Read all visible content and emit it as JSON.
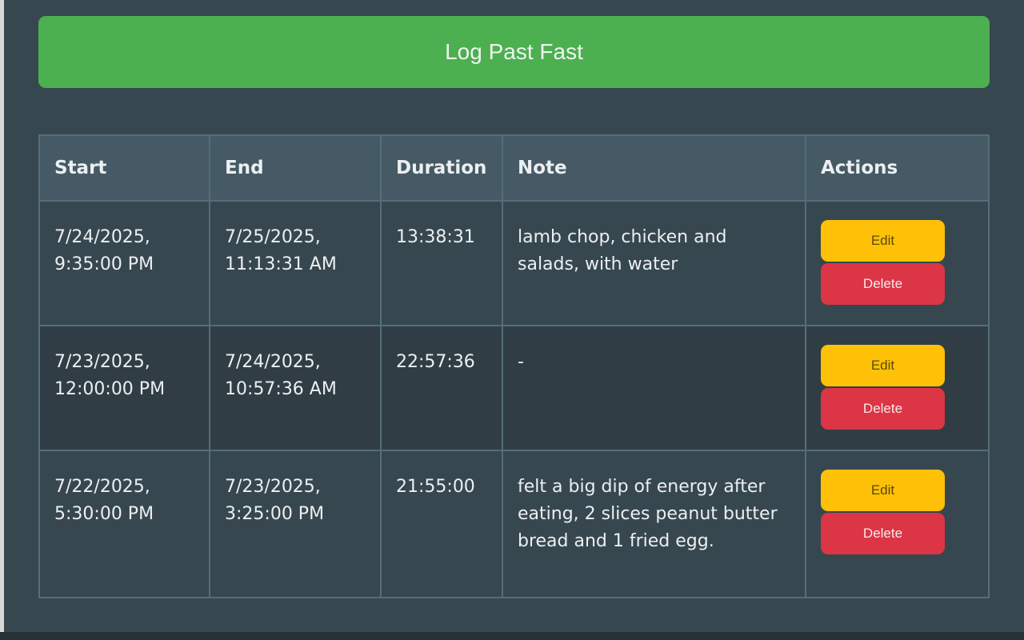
{
  "log_button": "Log Past Fast",
  "table": {
    "headers": [
      "Start",
      "End",
      "Duration",
      "Note",
      "Actions"
    ],
    "rows": [
      {
        "start": "7/24/2025, 9:35:00 PM",
        "end": "7/25/2025, 11:13:31 AM",
        "duration": "13:38:31",
        "note": "lamb chop, chicken and salads, with water",
        "edit": "Edit",
        "delete": "Delete"
      },
      {
        "start": "7/23/2025, 12:00:00 PM",
        "end": "7/24/2025, 10:57:36 AM",
        "duration": "22:57:36",
        "note": "-",
        "edit": "Edit",
        "delete": "Delete"
      },
      {
        "start": "7/22/2025, 5:30:00 PM",
        "end": "7/23/2025, 3:25:00 PM",
        "duration": "21:55:00",
        "note": "felt a big dip of energy after eating, 2 slices peanut butter bread and 1 fried egg.",
        "edit": "Edit",
        "delete": "Delete"
      }
    ]
  },
  "colors": {
    "background": "#37474f",
    "primary": "#4caf50",
    "edit": "#ffc107",
    "delete": "#dc3545",
    "header": "#455a64"
  }
}
